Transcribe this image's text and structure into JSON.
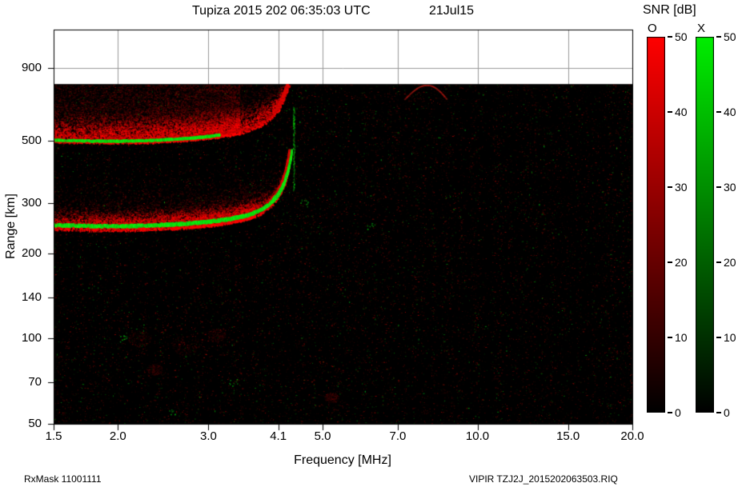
{
  "header": {
    "title": "Tupiza 2015 202 06:35:03 UTC",
    "date": "21Jul15"
  },
  "colorbar": {
    "title": "SNR [dB]",
    "o_label": "O",
    "x_label": "X",
    "o_color": "#ff0000",
    "x_color": "#00ee00",
    "min": 0,
    "max": 50,
    "ticks": [
      0,
      10,
      20,
      30,
      40,
      50
    ]
  },
  "footer": {
    "left": "RxMask 11001111",
    "right": "VIPIR  TZJ2J_2015202063503.RIQ"
  },
  "chart_data": {
    "type": "heatmap",
    "title": "Tupiza 2015 202 06:35:03 UTC  21Jul15 ionogram, O and X mode SNR [dB]",
    "xlabel": "Frequency [MHz]",
    "ylabel": "Range [km]",
    "x_scale": "log",
    "y_scale": "log",
    "x_range": [
      1.5,
      20.0
    ],
    "y_range": [
      50,
      1230
    ],
    "data_top_km": 790,
    "x_ticks": [
      1.5,
      2.0,
      3.0,
      4.1,
      5.0,
      7.0,
      10.0,
      15.0,
      20.0
    ],
    "x_tick_labels": [
      "1.5",
      "2.0",
      "3.0",
      "4.1",
      "5.0",
      "7.0",
      "10.0",
      "15.0",
      "20.0"
    ],
    "y_ticks": [
      50,
      70,
      100,
      140,
      200,
      300,
      500,
      900
    ],
    "y_tick_labels": [
      "50",
      "70",
      "100",
      "140",
      "200",
      "300",
      "500",
      "900"
    ],
    "background": "#000000",
    "grid_color": "#999999",
    "noise": {
      "seed": 42,
      "density": 26000,
      "red_fraction": 0.82
    },
    "traces": [
      {
        "name": "F-region echo first hop (critical frequency ~4.4 MHz, virtual height ~250 km)",
        "points": [
          [
            1.5,
            251
          ],
          [
            1.8,
            249
          ],
          [
            2.1,
            249
          ],
          [
            2.4,
            251
          ],
          [
            2.7,
            254
          ],
          [
            3.0,
            258
          ],
          [
            3.3,
            264
          ],
          [
            3.6,
            273
          ],
          [
            3.8,
            285
          ],
          [
            3.95,
            299
          ],
          [
            4.1,
            322
          ],
          [
            4.2,
            350
          ],
          [
            4.28,
            388
          ],
          [
            4.33,
            428
          ],
          [
            4.36,
            465
          ]
        ],
        "x_line_f_end": 4.36,
        "x_line_gap": 0.1,
        "o_spread_mean_km": 26,
        "spread_f_end": 4.3,
        "fade_f": 3.7,
        "diffuse_count": 9000,
        "fill_to_top": false,
        "o_asymptote": {
          "f_start": 3.95,
          "f_end": 4.36,
          "f_shift": 0.05,
          "h_cap": 478
        }
      },
      {
        "name": "F-region echo second hop (~500 km, diffuse O-mode spread up to data top)",
        "points": [
          [
            1.5,
            501
          ],
          [
            1.8,
            497
          ],
          [
            2.1,
            497
          ],
          [
            2.4,
            501
          ],
          [
            2.7,
            507
          ],
          [
            3.0,
            516
          ],
          [
            3.3,
            528
          ],
          [
            3.6,
            546
          ],
          [
            3.8,
            570
          ],
          [
            3.95,
            598
          ],
          [
            4.1,
            644
          ],
          [
            4.2,
            700
          ],
          [
            4.28,
            764
          ],
          [
            4.33,
            805
          ]
        ],
        "x_line_f_end": 3.15,
        "x_line_gap": 0.25,
        "o_spread_mean_km": 85,
        "spread_f_end": 4.33,
        "fade_f": 3.45,
        "diffuse_count": 13000,
        "fill_to_top": true,
        "o_asymptote": {
          "f_start": 4.05,
          "f_end": 4.33,
          "f_shift": 0.04,
          "h_cap": 790
        }
      }
    ],
    "features": {
      "green_streak": {
        "f": 4.39,
        "h_min": 335,
        "h_max": 660
      },
      "faint_arc": {
        "f_start": 7.2,
        "f_end": 8.7,
        "h_base": 700,
        "h_peak": 786
      },
      "red_patches": [
        [
          2.2,
          100,
          14
        ],
        [
          2.7,
          95,
          18
        ],
        [
          3.1,
          103,
          12
        ],
        [
          2.35,
          78,
          10
        ],
        [
          5.2,
          62,
          9
        ]
      ],
      "green_clusters": [
        [
          2.05,
          100
        ],
        [
          3.35,
          70
        ],
        [
          2.55,
          55
        ],
        [
          4.6,
          300
        ],
        [
          6.2,
          250
        ]
      ]
    }
  }
}
